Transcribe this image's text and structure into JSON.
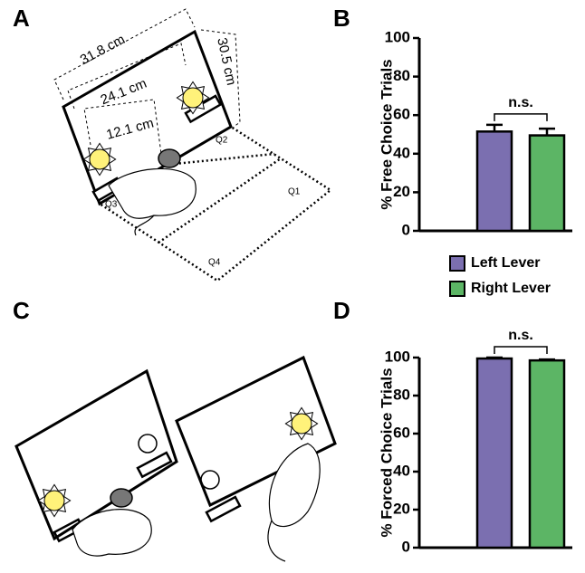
{
  "panels": {
    "labels": [
      "A",
      "B",
      "C",
      "D"
    ]
  },
  "diagram": {
    "dimensions": [
      "31.8 cm",
      "30.5 cm",
      "24.1 cm",
      "12.1 cm"
    ],
    "quadrants": [
      "Q1",
      "Q2",
      "Q3",
      "Q4"
    ]
  },
  "chart_data": [
    {
      "type": "bar",
      "y_label": "% Free Choice Trials",
      "annotation": "n.s.",
      "series": [
        {
          "name": "Left Lever",
          "color": "#7b6fb0",
          "values": [
            51.5
          ],
          "errors": [
            3.5
          ]
        },
        {
          "name": "Right Lever",
          "color": "#5cb565",
          "values": [
            49.5
          ],
          "errors": [
            3.5
          ]
        }
      ],
      "ylim": [
        0,
        100
      ],
      "yticks": [
        0,
        20,
        40,
        60,
        80,
        100
      ]
    },
    {
      "type": "bar",
      "y_label": "% Forced Choice Trials",
      "annotation": "n.s.",
      "series": [
        {
          "color": "#7b6fb0",
          "values": [
            99.5
          ],
          "errors": [
            0.5
          ]
        },
        {
          "color": "#5cb565",
          "values": [
            98.5
          ],
          "errors": [
            0.5
          ]
        }
      ],
      "ylim": [
        0,
        100
      ],
      "yticks": [
        0,
        20,
        40,
        60,
        80,
        100
      ]
    }
  ]
}
